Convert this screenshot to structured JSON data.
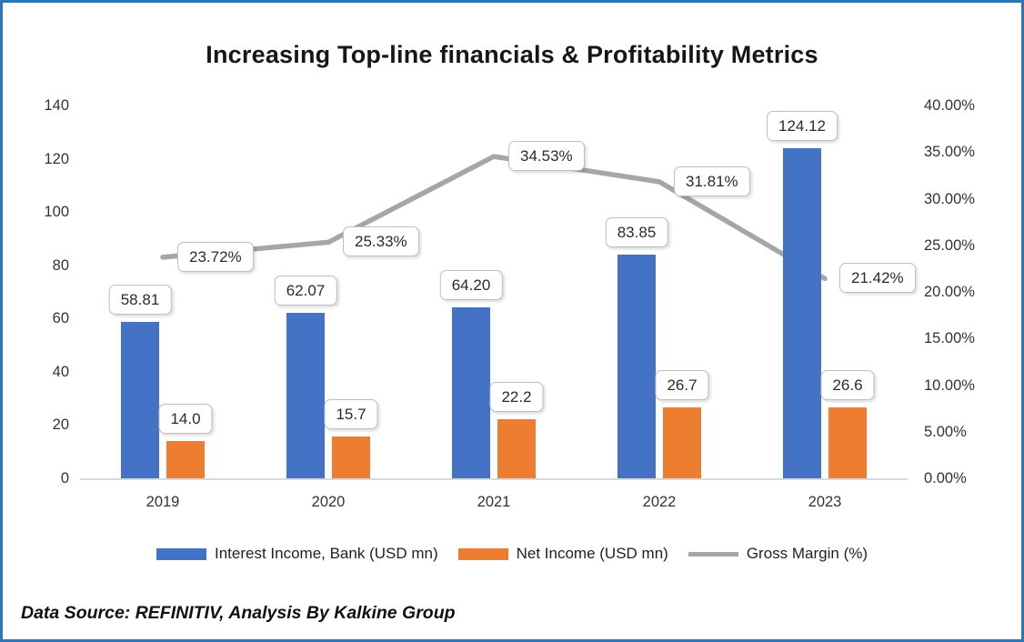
{
  "title": "Increasing Top-line financials & Profitability Metrics",
  "footer": "Data Source: REFINITIV, Analysis By Kalkine Group",
  "colors": {
    "frame_border": "#2E75B6",
    "bar_interest_income": "#4472C4",
    "bar_net_income": "#ED7D31",
    "line_gross_margin": "#A6A6A6",
    "callout_border": "#BFBFBF",
    "axis_baseline": "#D9D9D9"
  },
  "chart_data": {
    "type": "combo_bar_line",
    "categories": [
      "2019",
      "2020",
      "2021",
      "2022",
      "2023"
    ],
    "series": [
      {
        "name": "Interest Income, Bank (USD mn)",
        "type": "bar",
        "axis": "left",
        "color": "#4472C4",
        "values": [
          58.81,
          62.07,
          64.2,
          83.85,
          124.12
        ],
        "labels": [
          "58.81",
          "62.07",
          "64.20",
          "83.85",
          "124.12"
        ]
      },
      {
        "name": "Net Income (USD mn)",
        "type": "bar",
        "axis": "left",
        "color": "#ED7D31",
        "values": [
          14.0,
          15.7,
          22.2,
          26.7,
          26.6
        ],
        "labels": [
          "14.0",
          "15.7",
          "22.2",
          "26.7",
          "26.6"
        ]
      },
      {
        "name": "Gross Margin (%)",
        "type": "line",
        "axis": "right",
        "color": "#A6A6A6",
        "values": [
          23.72,
          25.33,
          34.53,
          31.81,
          21.42
        ],
        "labels": [
          "23.72%",
          "25.33%",
          "34.53%",
          "31.81%",
          "21.42%"
        ]
      }
    ],
    "left_axis": {
      "min": 0,
      "max": 140,
      "step": 20,
      "ticks": [
        "0",
        "20",
        "40",
        "60",
        "80",
        "100",
        "120",
        "140"
      ]
    },
    "right_axis": {
      "min": 0,
      "max": 40,
      "step": 5,
      "ticks": [
        "0.00%",
        "5.00%",
        "10.00%",
        "15.00%",
        "20.00%",
        "25.00%",
        "30.00%",
        "35.00%",
        "40.00%"
      ]
    },
    "grid": "off",
    "legend_position": "bottom"
  }
}
